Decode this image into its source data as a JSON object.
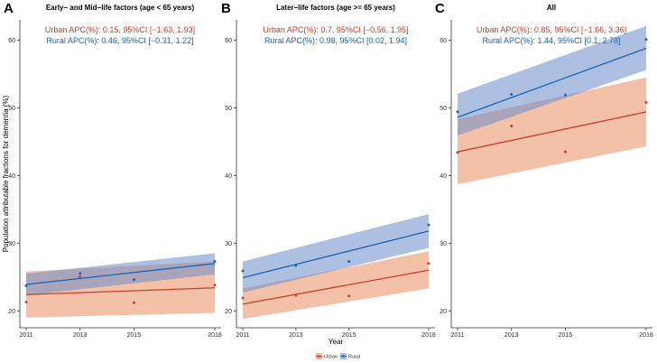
{
  "chart_data": [
    {
      "type": "line",
      "panel_label": "A",
      "title": "Early− and Mid−life factors (age < 65 years)",
      "xlabel": "",
      "ylabel": "Population attributable fractions for dementia (%)",
      "x_ticks": [
        "2011",
        "2013",
        "2015",
        "2018"
      ],
      "y_ticks": [
        "20",
        "30",
        "40",
        "50",
        "60"
      ],
      "xlim": [
        2011,
        2018
      ],
      "ylim": [
        17.5,
        63
      ],
      "annotations": [
        {
          "text": "Urban APC(%): 0.15, 95%CI [−1.63, 1.93]",
          "series": "Urban"
        },
        {
          "text": "Rural APC(%): 0.46, 95%CI [−0.31, 1.22]",
          "series": "Rural"
        }
      ],
      "series": [
        {
          "name": "Urban",
          "color": "#C7402B",
          "ci_color": "#E98E5F",
          "x": [
            2011,
            2013,
            2015,
            2018
          ],
          "points": [
            21.3,
            25.0,
            21.2,
            23.8
          ],
          "fit": [
            22.4,
            23.4
          ],
          "ci_lower": [
            19.0,
            19.7
          ],
          "ci_upper": [
            25.8,
            27.3
          ]
        },
        {
          "name": "Rural",
          "color": "#1566B5",
          "ci_color": "#6B8CCB",
          "x": [
            2011,
            2013,
            2015,
            2018
          ],
          "points": [
            23.7,
            25.5,
            24.6,
            27.3
          ],
          "fit": [
            23.9,
            27.0
          ],
          "ci_lower": [
            22.3,
            25.4
          ],
          "ci_upper": [
            25.5,
            28.5
          ]
        }
      ]
    },
    {
      "type": "line",
      "panel_label": "B",
      "title": "Later−life factors (age >= 65 years)",
      "xlabel": "Year",
      "ylabel": "",
      "x_ticks": [
        "2011",
        "2013",
        "2015",
        "2018"
      ],
      "y_ticks": [
        "20",
        "30",
        "40",
        "50",
        "60"
      ],
      "xlim": [
        2011,
        2018
      ],
      "ylim": [
        17.5,
        63
      ],
      "annotations": [
        {
          "text": "Urban APC(%): 0.7, 95%CI [−0.56, 1.95]",
          "series": "Urban"
        },
        {
          "text": "Rural APC(%): 0.98, 95%CI [0.02, 1.94]",
          "series": "Rural"
        }
      ],
      "series": [
        {
          "name": "Urban",
          "color": "#C7402B",
          "ci_color": "#E98E5F",
          "x": [
            2011,
            2013,
            2015,
            2018
          ],
          "points": [
            21.9,
            22.3,
            22.2,
            27.0
          ],
          "fit": [
            21.0,
            26.0
          ],
          "ci_lower": [
            18.8,
            23.3
          ],
          "ci_upper": [
            23.3,
            28.8
          ]
        },
        {
          "name": "Rural",
          "color": "#1566B5",
          "ci_color": "#6B8CCB",
          "x": [
            2011,
            2013,
            2015,
            2018
          ],
          "points": [
            25.9,
            26.7,
            27.3,
            32.7
          ],
          "fit": [
            24.9,
            31.8
          ],
          "ci_lower": [
            22.7,
            29.3
          ],
          "ci_upper": [
            27.3,
            34.3
          ]
        }
      ]
    },
    {
      "type": "line",
      "panel_label": "C",
      "title": "All",
      "xlabel": "",
      "ylabel": "",
      "x_ticks": [
        "2011",
        "2013",
        "2015",
        "2018"
      ],
      "y_ticks": [
        "20",
        "30",
        "40",
        "50",
        "60"
      ],
      "xlim": [
        2011,
        2018
      ],
      "ylim": [
        17.5,
        63
      ],
      "annotations": [
        {
          "text": "Urban APC(%): 0.85, 95%CI [−1.66, 3.36]",
          "series": "Urban"
        },
        {
          "text": "Rural APC(%): 1.44, 95%CI [0.1, 2.78]",
          "series": "Rural"
        }
      ],
      "series": [
        {
          "name": "Urban",
          "color": "#C7402B",
          "ci_color": "#E98E5F",
          "x": [
            2011,
            2013,
            2015,
            2018
          ],
          "points": [
            43.4,
            47.3,
            43.5,
            50.8
          ],
          "fit": [
            43.5,
            49.4
          ],
          "ci_lower": [
            38.7,
            44.3
          ],
          "ci_upper": [
            48.3,
            54.5
          ]
        },
        {
          "name": "Rural",
          "color": "#1566B5",
          "ci_color": "#6B8CCB",
          "x": [
            2011,
            2013,
            2015,
            2018
          ],
          "points": [
            49.4,
            52.0,
            51.9,
            60.1
          ],
          "fit": [
            48.6,
            58.8
          ],
          "ci_lower": [
            45.9,
            55.6
          ],
          "ci_upper": [
            52.1,
            62.1
          ]
        }
      ]
    }
  ],
  "legend": {
    "items": [
      {
        "label": "Urban",
        "color": "#C7402B",
        "fill": "#E98E5F"
      },
      {
        "label": "Rural",
        "color": "#1566B5",
        "fill": "#6B8CCB"
      }
    ]
  }
}
